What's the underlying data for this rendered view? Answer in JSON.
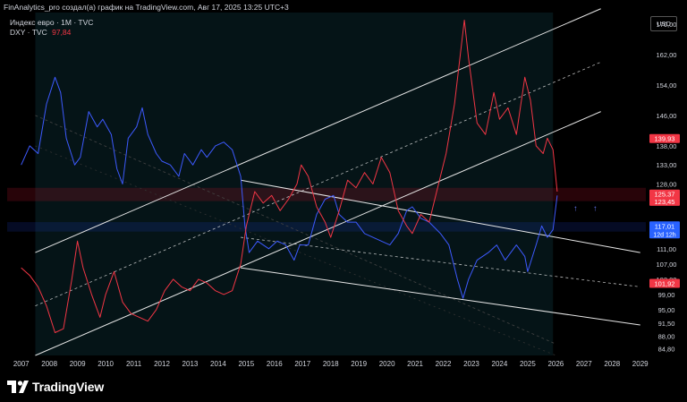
{
  "header": {
    "attribution": "FinAnalytics_pro создал(а) график на TradingView.com, Авг 17, 2025 13:25 UTC+3"
  },
  "legend": {
    "line1": "Индекс евро · 1M · TVC",
    "line2_label": "DXY · TVC",
    "line2_value": "97,84"
  },
  "currency": "USD",
  "footer": {
    "brand": "TradingView"
  },
  "chart_data": {
    "type": "line",
    "x_axis": {
      "ticks": [
        "2007",
        "2008",
        "2009",
        "2010",
        "2011",
        "2012",
        "2013",
        "2014",
        "2015",
        "2016",
        "2017",
        "2018",
        "2019",
        "2020",
        "2021",
        "2022",
        "2023",
        "2024",
        "2025",
        "2026",
        "2027",
        "2028",
        "2029"
      ],
      "range": [
        2006.5,
        2029.2
      ]
    },
    "y_axis": {
      "ticks": [
        "170,00",
        "162,00",
        "154,00",
        "146,00",
        "138,00",
        "133,00",
        "128,00",
        "117,01",
        "111,00",
        "107,00",
        "103,00",
        "99,00",
        "95,00",
        "91,50",
        "88,00",
        "84,80"
      ],
      "range": [
        83,
        173
      ],
      "position": "right"
    },
    "price_labels": [
      {
        "value": "139,93",
        "color": "#f23645"
      },
      {
        "value": "125,37",
        "color": "#f23645"
      },
      {
        "value": "123,45",
        "color": "#f23645"
      },
      {
        "value": "117,01",
        "sub": "12d 12h",
        "color": "#2962ff"
      },
      {
        "value": "101,92",
        "color": "#f23645"
      }
    ],
    "series": [
      {
        "name": "Индекс евро",
        "color": "#3d5afe",
        "points": [
          [
            2007.0,
            133
          ],
          [
            2007.3,
            138
          ],
          [
            2007.6,
            136
          ],
          [
            2007.9,
            149
          ],
          [
            2008.2,
            156
          ],
          [
            2008.4,
            152
          ],
          [
            2008.6,
            140
          ],
          [
            2008.9,
            133
          ],
          [
            2009.1,
            135
          ],
          [
            2009.4,
            147
          ],
          [
            2009.7,
            143
          ],
          [
            2009.9,
            145
          ],
          [
            2010.2,
            141
          ],
          [
            2010.4,
            132
          ],
          [
            2010.6,
            128
          ],
          [
            2010.8,
            140
          ],
          [
            2011.1,
            143
          ],
          [
            2011.3,
            148
          ],
          [
            2011.5,
            141
          ],
          [
            2011.8,
            136
          ],
          [
            2012.0,
            134
          ],
          [
            2012.3,
            133
          ],
          [
            2012.6,
            130
          ],
          [
            2012.8,
            136
          ],
          [
            2013.1,
            133
          ],
          [
            2013.4,
            137
          ],
          [
            2013.6,
            135
          ],
          [
            2013.9,
            138
          ],
          [
            2014.2,
            139
          ],
          [
            2014.5,
            137
          ],
          [
            2014.8,
            130
          ],
          [
            2014.95,
            117
          ],
          [
            2015.1,
            110
          ],
          [
            2015.4,
            113
          ],
          [
            2015.8,
            111
          ],
          [
            2016.1,
            113
          ],
          [
            2016.4,
            112
          ],
          [
            2016.7,
            108
          ],
          [
            2016.9,
            112
          ],
          [
            2017.2,
            112
          ],
          [
            2017.5,
            120
          ],
          [
            2017.8,
            124
          ],
          [
            2018.1,
            125
          ],
          [
            2018.3,
            120
          ],
          [
            2018.6,
            118
          ],
          [
            2018.9,
            118
          ],
          [
            2019.2,
            115
          ],
          [
            2019.5,
            114
          ],
          [
            2019.8,
            113
          ],
          [
            2020.1,
            112
          ],
          [
            2020.4,
            115
          ],
          [
            2020.7,
            121
          ],
          [
            2020.9,
            122
          ],
          [
            2021.2,
            119
          ],
          [
            2021.5,
            118
          ],
          [
            2021.9,
            115
          ],
          [
            2022.2,
            112
          ],
          [
            2022.5,
            103
          ],
          [
            2022.7,
            98
          ],
          [
            2022.9,
            103
          ],
          [
            2023.2,
            108
          ],
          [
            2023.6,
            110
          ],
          [
            2023.9,
            112
          ],
          [
            2024.2,
            108
          ],
          [
            2024.6,
            112
          ],
          [
            2024.9,
            109
          ],
          [
            2025.0,
            105
          ],
          [
            2025.3,
            112
          ],
          [
            2025.5,
            117
          ],
          [
            2025.7,
            114
          ],
          [
            2025.9,
            116
          ],
          [
            2026.05,
            125
          ]
        ]
      },
      {
        "name": "DXY",
        "color": "#f23645",
        "points": [
          [
            2007.0,
            106
          ],
          [
            2007.3,
            104
          ],
          [
            2007.6,
            101
          ],
          [
            2007.9,
            96
          ],
          [
            2008.2,
            89
          ],
          [
            2008.5,
            90
          ],
          [
            2008.8,
            103
          ],
          [
            2009.0,
            113
          ],
          [
            2009.2,
            106
          ],
          [
            2009.5,
            99
          ],
          [
            2009.8,
            93
          ],
          [
            2010.0,
            99
          ],
          [
            2010.3,
            105
          ],
          [
            2010.6,
            97
          ],
          [
            2010.9,
            94
          ],
          [
            2011.2,
            93
          ],
          [
            2011.5,
            92
          ],
          [
            2011.8,
            95
          ],
          [
            2012.1,
            100
          ],
          [
            2012.4,
            103
          ],
          [
            2012.7,
            101
          ],
          [
            2013.0,
            100
          ],
          [
            2013.3,
            103
          ],
          [
            2013.6,
            102
          ],
          [
            2013.9,
            100
          ],
          [
            2014.2,
            99
          ],
          [
            2014.5,
            100
          ],
          [
            2014.8,
            107
          ],
          [
            2015.0,
            117
          ],
          [
            2015.3,
            126
          ],
          [
            2015.6,
            123
          ],
          [
            2015.9,
            125
          ],
          [
            2016.2,
            121
          ],
          [
            2016.5,
            124
          ],
          [
            2016.8,
            128
          ],
          [
            2016.95,
            133
          ],
          [
            2017.2,
            130
          ],
          [
            2017.5,
            122
          ],
          [
            2017.8,
            118
          ],
          [
            2018.0,
            114
          ],
          [
            2018.3,
            121
          ],
          [
            2018.6,
            129
          ],
          [
            2018.9,
            127
          ],
          [
            2019.2,
            131
          ],
          [
            2019.5,
            128
          ],
          [
            2019.8,
            135
          ],
          [
            2020.1,
            131
          ],
          [
            2020.4,
            121
          ],
          [
            2020.7,
            117
          ],
          [
            2020.9,
            115
          ],
          [
            2021.2,
            120
          ],
          [
            2021.5,
            118
          ],
          [
            2021.8,
            127
          ],
          [
            2022.1,
            136
          ],
          [
            2022.4,
            149
          ],
          [
            2022.75,
            171
          ],
          [
            2022.9,
            161
          ],
          [
            2023.2,
            144
          ],
          [
            2023.5,
            141
          ],
          [
            2023.8,
            152
          ],
          [
            2024.0,
            145
          ],
          [
            2024.3,
            148
          ],
          [
            2024.6,
            141
          ],
          [
            2024.9,
            156
          ],
          [
            2025.1,
            150
          ],
          [
            2025.3,
            138
          ],
          [
            2025.55,
            136
          ],
          [
            2025.7,
            140
          ],
          [
            2025.9,
            137
          ],
          [
            2026.05,
            126
          ]
        ]
      }
    ],
    "channels": [
      {
        "name": "rising",
        "color": "#e6e6e6",
        "upper": [
          [
            2007.5,
            110
          ],
          [
            2027.6,
            174
          ]
        ],
        "mid": [
          [
            2007.5,
            96
          ],
          [
            2027.6,
            160
          ]
        ],
        "lower": [
          [
            2007.5,
            83
          ],
          [
            2027.6,
            147
          ]
        ]
      },
      {
        "name": "falling",
        "color": "#e6e6e6",
        "upper": [
          [
            2014.8,
            129
          ],
          [
            2029.0,
            110
          ]
        ],
        "mid": [
          [
            2014.8,
            114
          ],
          [
            2029.0,
            101
          ]
        ],
        "lower": [
          [
            2014.8,
            106
          ],
          [
            2029.0,
            91
          ]
        ]
      }
    ],
    "shading": [
      {
        "color": "rgba(18,80,90,0.25)",
        "x": [
          2007.5,
          2025.9
        ]
      },
      {
        "color": "rgba(180,20,40,0.22)",
        "y": [
          123.5,
          127
        ]
      },
      {
        "color": "rgba(30,60,200,0.18)",
        "y": [
          115.5,
          118
        ]
      }
    ]
  }
}
